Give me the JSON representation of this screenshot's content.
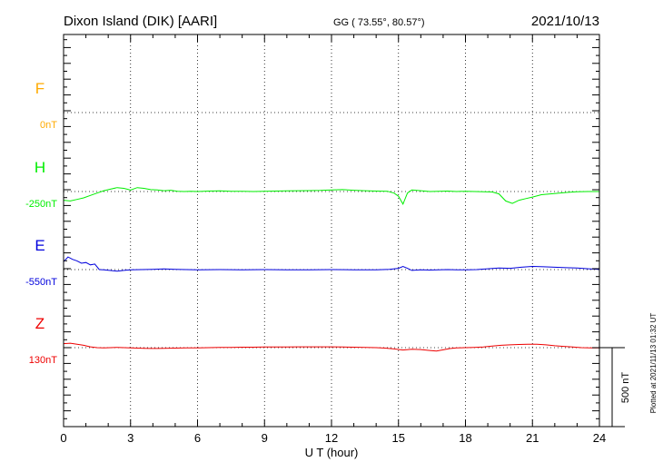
{
  "header": {
    "station": "Dixon Island (DIK)  [AARI]",
    "coords": "GG ( 73.55°,  80.57°)",
    "date": "2021/10/13"
  },
  "plotted_note": "Plotted at 2021/11/13 01:32 UT",
  "scale_bar_label": "500 nT",
  "colors": {
    "F": "#ffaa00",
    "H": "#00ee00",
    "E": "#0000dd",
    "Z": "#ee0000",
    "axis": "#000000"
  },
  "chart_data": {
    "type": "line",
    "xlabel": "U T (hour)",
    "xlim": [
      0,
      24
    ],
    "x_ticks": [
      0,
      3,
      6,
      9,
      12,
      15,
      18,
      21,
      24
    ],
    "x_tick_labels": [
      "0",
      "3",
      "6",
      "9",
      "12",
      "15",
      "18",
      "21",
      "24"
    ],
    "ylim_nT": [
      -1000,
      650
    ],
    "scale_bar_nT": 500,
    "grid": true,
    "series": [
      {
        "name": "F",
        "baseline_label": "0nT",
        "color": "#ffaa00",
        "points": []
      },
      {
        "name": "H",
        "baseline_label": "-250nT",
        "color": "#00ee00",
        "points": [
          [
            0.0,
            -55
          ],
          [
            0.3,
            -60
          ],
          [
            0.6,
            -50
          ],
          [
            0.9,
            -40
          ],
          [
            1.2,
            -25
          ],
          [
            1.5,
            -10
          ],
          [
            1.8,
            5
          ],
          [
            2.1,
            15
          ],
          [
            2.4,
            25
          ],
          [
            2.7,
            20
          ],
          [
            3.0,
            10
          ],
          [
            3.3,
            25
          ],
          [
            3.6,
            20
          ],
          [
            3.9,
            12
          ],
          [
            4.2,
            10
          ],
          [
            4.5,
            5
          ],
          [
            4.8,
            8
          ],
          [
            5.1,
            2
          ],
          [
            5.4,
            0
          ],
          [
            5.7,
            2
          ],
          [
            6.0,
            0
          ],
          [
            6.5,
            3
          ],
          [
            7.0,
            4
          ],
          [
            7.5,
            1
          ],
          [
            8.0,
            2
          ],
          [
            8.5,
            0
          ],
          [
            9.0,
            2
          ],
          [
            9.5,
            3
          ],
          [
            10.0,
            4
          ],
          [
            10.5,
            5
          ],
          [
            11.0,
            6
          ],
          [
            11.5,
            7
          ],
          [
            12.0,
            10
          ],
          [
            12.5,
            12
          ],
          [
            13.0,
            8
          ],
          [
            13.5,
            5
          ],
          [
            14.0,
            3
          ],
          [
            14.5,
            2
          ],
          [
            14.8,
            -10
          ],
          [
            15.0,
            -30
          ],
          [
            15.2,
            -80
          ],
          [
            15.4,
            -10
          ],
          [
            15.6,
            10
          ],
          [
            16.0,
            5
          ],
          [
            16.4,
            0
          ],
          [
            16.8,
            2
          ],
          [
            17.2,
            3
          ],
          [
            17.6,
            0
          ],
          [
            18.0,
            2
          ],
          [
            18.4,
            0
          ],
          [
            18.8,
            -2
          ],
          [
            19.2,
            -3
          ],
          [
            19.5,
            -15
          ],
          [
            19.8,
            -60
          ],
          [
            20.1,
            -75
          ],
          [
            20.4,
            -55
          ],
          [
            20.7,
            -45
          ],
          [
            21.0,
            -35
          ],
          [
            21.4,
            -20
          ],
          [
            21.8,
            -15
          ],
          [
            22.2,
            -10
          ],
          [
            22.6,
            -5
          ],
          [
            23.0,
            -2
          ],
          [
            23.5,
            0
          ],
          [
            24.0,
            0
          ]
        ]
      },
      {
        "name": "E",
        "baseline_label": "-550nT",
        "color": "#0000dd",
        "points": [
          [
            0.0,
            50
          ],
          [
            0.2,
            80
          ],
          [
            0.4,
            65
          ],
          [
            0.6,
            55
          ],
          [
            0.8,
            40
          ],
          [
            1.0,
            45
          ],
          [
            1.2,
            30
          ],
          [
            1.4,
            35
          ],
          [
            1.6,
            0
          ],
          [
            1.8,
            -2
          ],
          [
            2.0,
            -4
          ],
          [
            2.4,
            -10
          ],
          [
            2.7,
            -5
          ],
          [
            3.0,
            -2
          ],
          [
            3.5,
            0
          ],
          [
            4.0,
            2
          ],
          [
            4.5,
            4
          ],
          [
            5.0,
            2
          ],
          [
            5.5,
            0
          ],
          [
            6.0,
            -2
          ],
          [
            7.0,
            0
          ],
          [
            8.0,
            -1
          ],
          [
            9.0,
            0
          ],
          [
            10.0,
            -2
          ],
          [
            11.0,
            -1
          ],
          [
            12.0,
            0
          ],
          [
            13.0,
            -1
          ],
          [
            14.0,
            -2
          ],
          [
            14.6,
            2
          ],
          [
            15.0,
            8
          ],
          [
            15.2,
            20
          ],
          [
            15.4,
            8
          ],
          [
            15.6,
            -5
          ],
          [
            16.0,
            -2
          ],
          [
            16.4,
            -3
          ],
          [
            16.8,
            -1
          ],
          [
            17.2,
            0
          ],
          [
            17.6,
            -2
          ],
          [
            18.0,
            -1
          ],
          [
            18.5,
            0
          ],
          [
            19.0,
            5
          ],
          [
            19.5,
            10
          ],
          [
            20.0,
            8
          ],
          [
            20.5,
            15
          ],
          [
            21.0,
            20
          ],
          [
            21.5,
            18
          ],
          [
            22.0,
            15
          ],
          [
            22.5,
            12
          ],
          [
            23.0,
            10
          ],
          [
            23.5,
            5
          ],
          [
            24.0,
            2
          ]
        ]
      },
      {
        "name": "Z",
        "baseline_label": "130nT",
        "color": "#ee0000",
        "points": [
          [
            0.0,
            25
          ],
          [
            0.3,
            28
          ],
          [
            0.6,
            22
          ],
          [
            0.9,
            15
          ],
          [
            1.2,
            5
          ],
          [
            1.5,
            0
          ],
          [
            1.8,
            -2
          ],
          [
            2.1,
            0
          ],
          [
            2.4,
            2
          ],
          [
            2.7,
            0
          ],
          [
            3.0,
            -2
          ],
          [
            3.3,
            -3
          ],
          [
            3.6,
            -4
          ],
          [
            3.9,
            -5
          ],
          [
            4.2,
            -5
          ],
          [
            4.5,
            -4
          ],
          [
            5.0,
            -3
          ],
          [
            5.5,
            -2
          ],
          [
            6.0,
            -1
          ],
          [
            6.5,
            0
          ],
          [
            7.0,
            1
          ],
          [
            7.5,
            2
          ],
          [
            8.0,
            3
          ],
          [
            8.5,
            3
          ],
          [
            9.0,
            4
          ],
          [
            9.5,
            4
          ],
          [
            10.0,
            4
          ],
          [
            10.5,
            5
          ],
          [
            11.0,
            5
          ],
          [
            11.5,
            5
          ],
          [
            12.0,
            5
          ],
          [
            12.5,
            4
          ],
          [
            13.0,
            3
          ],
          [
            13.5,
            2
          ],
          [
            14.0,
            0
          ],
          [
            14.4,
            -3
          ],
          [
            14.8,
            -8
          ],
          [
            15.2,
            -15
          ],
          [
            15.6,
            -10
          ],
          [
            16.0,
            -12
          ],
          [
            16.4,
            -18
          ],
          [
            16.7,
            -22
          ],
          [
            17.0,
            -14
          ],
          [
            17.3,
            -6
          ],
          [
            17.6,
            -2
          ],
          [
            18.0,
            0
          ],
          [
            18.4,
            2
          ],
          [
            18.8,
            4
          ],
          [
            19.2,
            10
          ],
          [
            19.6,
            15
          ],
          [
            20.0,
            18
          ],
          [
            20.4,
            20
          ],
          [
            20.8,
            22
          ],
          [
            21.2,
            22
          ],
          [
            21.6,
            18
          ],
          [
            22.0,
            12
          ],
          [
            22.4,
            8
          ],
          [
            22.8,
            4
          ],
          [
            23.2,
            0
          ],
          [
            23.6,
            -2
          ],
          [
            24.0,
            -1
          ]
        ]
      }
    ]
  }
}
